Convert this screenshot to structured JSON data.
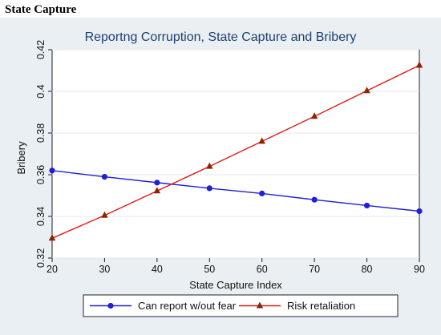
{
  "heading": "State Capture",
  "chart_data": {
    "type": "line",
    "title": "Reportng Corruption, State Capture and Bribery",
    "xlabel": "State Capture Index",
    "ylabel": "Bribery",
    "x": [
      20,
      30,
      40,
      50,
      60,
      70,
      80,
      90
    ],
    "xlim": [
      20,
      90
    ],
    "ylim": [
      0.32,
      0.42
    ],
    "xticks": [
      "20",
      "30",
      "40",
      "50",
      "60",
      "70",
      "80",
      "90"
    ],
    "yticks": [
      "0.32",
      "0.34",
      "0.36",
      "0.38",
      "0.4",
      "0.42"
    ],
    "grid": true,
    "legend_position": "bottom",
    "series": [
      {
        "name": "Can report w/out fear",
        "color": "#1f1fd6",
        "marker": "circle",
        "values": [
          0.362,
          0.359,
          0.3562,
          0.3535,
          0.351,
          0.348,
          0.3452,
          0.3425
        ]
      },
      {
        "name": "Risk retaliation",
        "color": "#e01b1b",
        "marker_color": "#8b2500",
        "marker": "triangle",
        "values": [
          0.3295,
          0.3405,
          0.3522,
          0.364,
          0.376,
          0.388,
          0.4003,
          0.4125
        ]
      }
    ]
  }
}
